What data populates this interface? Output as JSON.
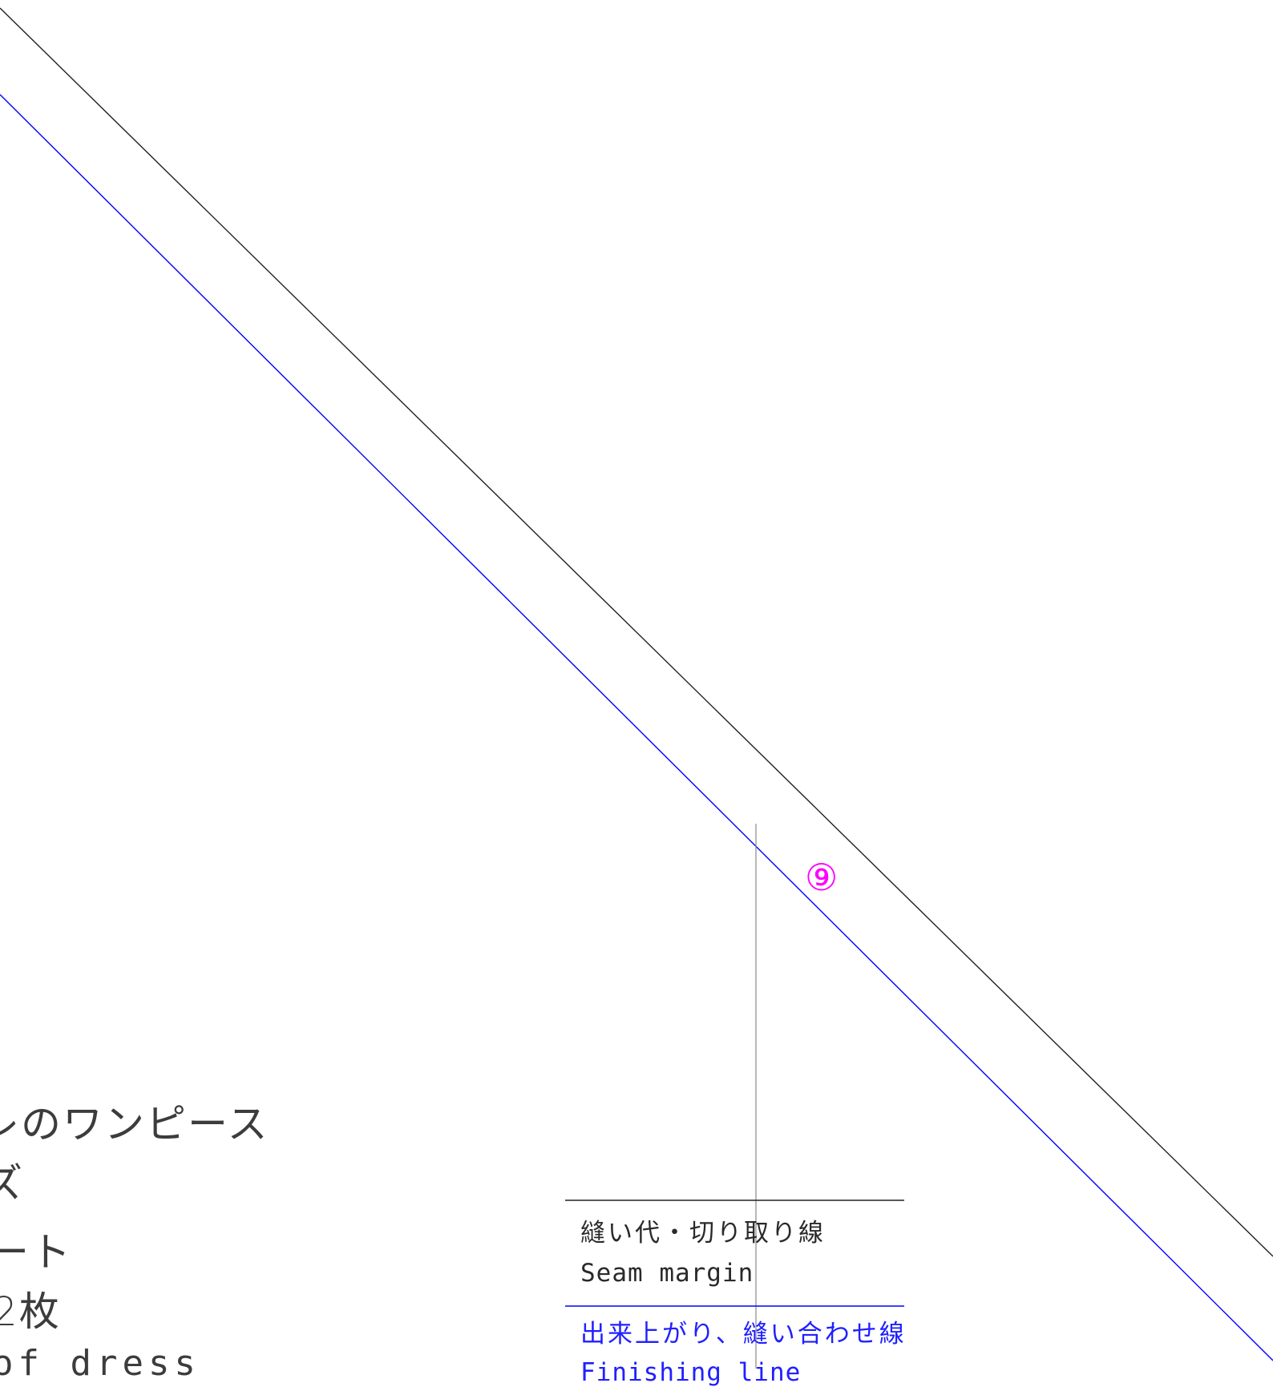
{
  "pattern": {
    "piece_marker": "⑨",
    "title_lines": [
      "レのワンピース",
      "ズ",
      "ート",
      "2枚",
      "of dress"
    ]
  },
  "legend": {
    "cut_line_jp": "縫い代・切り取り線",
    "cut_line_en": "Seam margin",
    "finish_line_jp": "出来上がり、縫い合わせ線",
    "finish_line_en": "Finishing line"
  },
  "colors": {
    "cut_line": "#222222",
    "finish_line": "#0000ff",
    "marker": "#ff00ff",
    "grain_line": "#888888"
  }
}
